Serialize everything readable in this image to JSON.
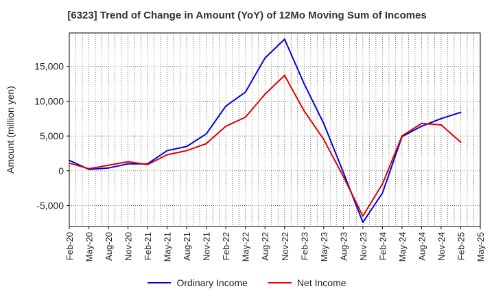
{
  "chart_data": {
    "type": "line",
    "title": "[6323]  Trend of Change in Amount (YoY) of 12Mo Moving Sum of Incomes",
    "xlabel": "",
    "ylabel": "Amount (million yen)",
    "ylim": [
      -8000,
      19800
    ],
    "yticks": [
      -5000,
      0,
      5000,
      10000,
      15000
    ],
    "ytick_labels": [
      "-5,000",
      "0",
      "5,000",
      "10,000",
      "15,000"
    ],
    "categories": [
      "Feb-20",
      "May-20",
      "Aug-20",
      "Nov-20",
      "Feb-21",
      "May-21",
      "Aug-21",
      "Nov-21",
      "Feb-22",
      "May-22",
      "Aug-22",
      "Nov-22",
      "Feb-23",
      "May-23",
      "Aug-23",
      "Nov-23",
      "Feb-24",
      "May-24",
      "Aug-24",
      "Nov-24",
      "Feb-25",
      "May-25"
    ],
    "series": [
      {
        "name": "Ordinary Income",
        "color": "#0000dd",
        "values": [
          1500,
          200,
          400,
          1000,
          1000,
          2900,
          3500,
          5300,
          9300,
          11300,
          16200,
          18900,
          12500,
          6800,
          -200,
          -7400,
          -3200,
          4900,
          6400,
          7500,
          8400,
          null
        ]
      },
      {
        "name": "Net Income",
        "color": "#dd0000",
        "values": [
          1100,
          300,
          800,
          1300,
          900,
          2300,
          2900,
          3900,
          6400,
          7700,
          11000,
          13700,
          8600,
          4500,
          -800,
          -6500,
          -1900,
          5000,
          6800,
          6600,
          4100,
          null
        ]
      }
    ],
    "legend_position": "bottom-center"
  }
}
